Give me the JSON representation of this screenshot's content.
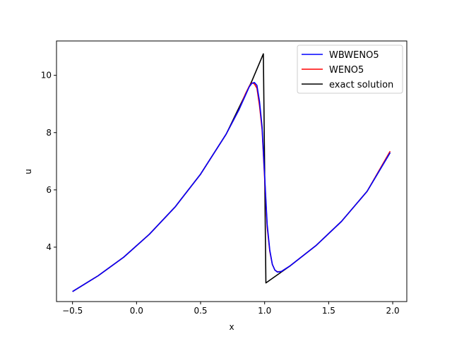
{
  "chart_data": {
    "type": "line",
    "title": "",
    "xlabel": "x",
    "ylabel": "u",
    "xlim": [
      -0.625,
      2.11
    ],
    "ylim": [
      2.1,
      11.2
    ],
    "xticks": [
      -0.5,
      0.0,
      0.5,
      1.0,
      1.5,
      2.0
    ],
    "xtick_labels": [
      "−0.5",
      "0.0",
      "0.5",
      "1.0",
      "1.5",
      "2.0"
    ],
    "yticks": [
      4,
      6,
      8,
      10
    ],
    "ytick_labels": [
      "4",
      "6",
      "8",
      "10"
    ],
    "grid": false,
    "legend_position": "top-right",
    "series": [
      {
        "name": "WBWENO5",
        "color": "#0000ff",
        "x": [
          -0.5,
          -0.3,
          -0.1,
          0.1,
          0.3,
          0.5,
          0.7,
          0.8,
          0.85,
          0.88,
          0.9,
          0.92,
          0.94,
          0.96,
          0.98,
          1.0,
          1.02,
          1.04,
          1.06,
          1.08,
          1.1,
          1.13,
          1.2,
          1.4,
          1.6,
          1.8,
          1.98
        ],
        "y": [
          2.45,
          3.0,
          3.65,
          4.45,
          5.4,
          6.55,
          7.95,
          8.8,
          9.3,
          9.6,
          9.72,
          9.75,
          9.65,
          9.1,
          8.2,
          6.5,
          4.8,
          3.9,
          3.4,
          3.2,
          3.13,
          3.15,
          3.35,
          4.05,
          4.9,
          5.95,
          7.3
        ]
      },
      {
        "name": "WENO5",
        "color": "#ff0000",
        "x": [
          -0.5,
          -0.3,
          -0.1,
          0.1,
          0.3,
          0.5,
          0.7,
          0.8,
          0.85,
          0.88,
          0.9,
          0.92,
          0.94,
          0.96,
          0.98,
          1.0,
          1.02,
          1.04,
          1.06,
          1.08,
          1.1,
          1.13,
          1.2,
          1.4,
          1.6,
          1.8,
          1.98
        ],
        "y": [
          2.45,
          3.0,
          3.65,
          4.45,
          5.4,
          6.55,
          7.95,
          8.8,
          9.35,
          9.62,
          9.74,
          9.7,
          9.55,
          8.95,
          8.1,
          6.4,
          4.7,
          3.85,
          3.4,
          3.2,
          3.14,
          3.15,
          3.35,
          4.05,
          4.9,
          5.95,
          7.35
        ]
      },
      {
        "name": "exact solution",
        "color": "#000000",
        "x": [
          -0.5,
          -0.3,
          -0.1,
          0.1,
          0.3,
          0.5,
          0.7,
          0.9,
          0.99,
          0.99,
          1.01,
          1.2,
          1.4,
          1.6,
          1.8,
          1.98
        ],
        "y": [
          2.45,
          3.0,
          3.65,
          4.45,
          5.4,
          6.55,
          7.95,
          9.8,
          10.75,
          10.75,
          2.75,
          3.35,
          4.05,
          4.9,
          5.95,
          7.3
        ]
      }
    ]
  }
}
